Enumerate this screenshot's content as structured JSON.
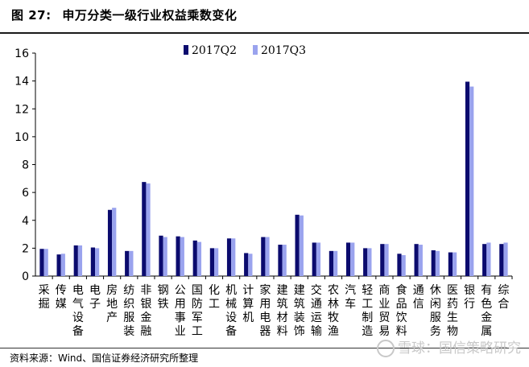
{
  "figure": {
    "label": "图 27:",
    "title": "申万分类一级行业权益乘数变化",
    "source": "资料来源：Wind、国信证券经济研究所整理",
    "watermark": "雪球：国信策略研究"
  },
  "colors": {
    "series_q2": "#0b0b6e",
    "series_q3": "#9aa3ee"
  },
  "chart_data": {
    "type": "bar",
    "title": "",
    "xlabel": "",
    "ylabel": "",
    "ylim": [
      0,
      16
    ],
    "yticks": [
      0,
      2,
      4,
      6,
      8,
      10,
      12,
      14,
      16
    ],
    "legend_position": "top-center",
    "grid": false,
    "categories": [
      "采掘",
      "传媒",
      "电气设备",
      "电子",
      "房地产",
      "纺织服装",
      "非银金融",
      "钢铁",
      "公用事业",
      "国防军工",
      "化工",
      "机械设备",
      "计算机",
      "家用电器",
      "建筑材料",
      "建筑装饰",
      "交通运输",
      "农林牧渔",
      "汽车",
      "轻工制造",
      "商业贸易",
      "食品饮料",
      "通信",
      "休闲服务",
      "医药生物",
      "银行",
      "有色金属",
      "综合"
    ],
    "series": [
      {
        "name": "2017Q2",
        "values": [
          1.95,
          1.55,
          2.2,
          2.05,
          4.75,
          1.8,
          6.75,
          2.9,
          2.85,
          2.55,
          2.0,
          2.7,
          1.65,
          2.8,
          2.25,
          4.4,
          2.4,
          1.8,
          2.4,
          2.0,
          2.3,
          1.6,
          2.3,
          1.85,
          1.7,
          13.95,
          2.3,
          2.3
        ]
      },
      {
        "name": "2017Q3",
        "values": [
          1.95,
          1.6,
          2.2,
          2.0,
          4.9,
          1.8,
          6.65,
          2.8,
          2.8,
          2.45,
          2.0,
          2.7,
          1.6,
          2.8,
          2.25,
          4.35,
          2.4,
          1.8,
          2.4,
          2.0,
          2.3,
          1.5,
          2.25,
          1.8,
          1.7,
          13.6,
          2.4,
          2.4
        ]
      }
    ]
  }
}
